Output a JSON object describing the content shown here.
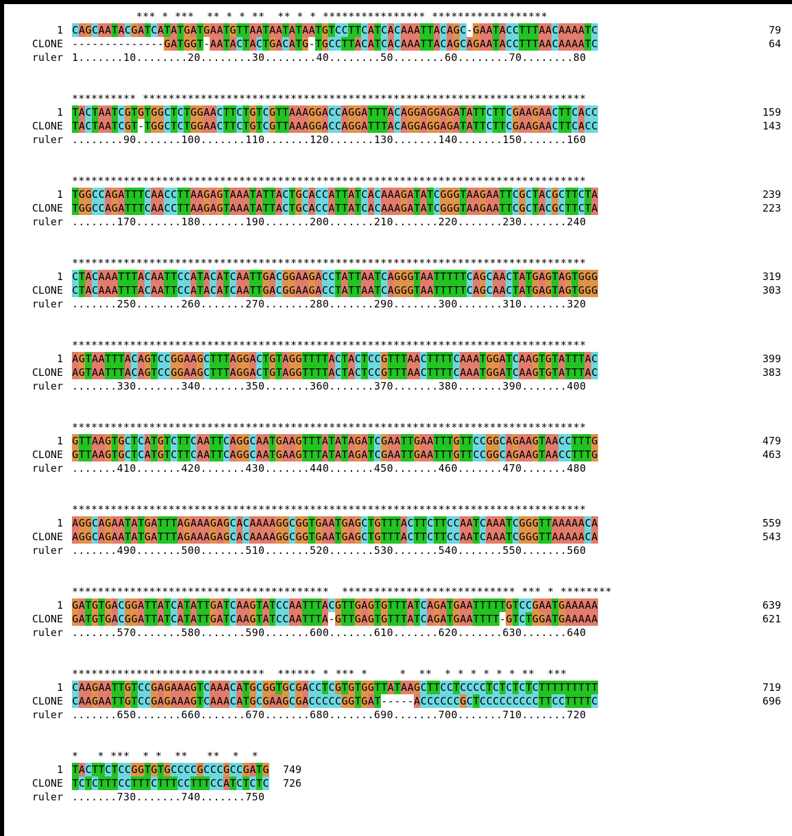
{
  "labels": {
    "seq1": "1",
    "seq2": "CLONE",
    "ruler": "ruler"
  },
  "colors": {
    "A": "#e27c6c",
    "C": "#6dd8e0",
    "G": "#e0934a",
    "T": "#22c322"
  },
  "blocks": [
    {
      "cons": "          *** * ***  ** * * **  ** * * **************** ******************",
      "seq1": "CAGCAATACGATCATATGATGAATGTTAATAATATAATGTCCTTCATCACAAATTACAGC-GAATACCTTTAACAAAATC",
      "seq2": "--------------GATGGT-AATACTACTGACATG-TGCCTTACATCACAAATTACAGCAGAATACCTTTAACAAAATC",
      "ruler": "1.......10........20........30........40........50........60........70........80",
      "end1": "79",
      "end2": "64"
    },
    {
      "cons": "********** *********************************************************************",
      "seq1": "TACTAATCGTGTGGCTCTGGAACTTCTGTCGTTAAAGGACCAGGATTTACAGGAGGAGATATTCTTCGAAGAACTTCACC",
      "seq2": "TACTAATCGT-TGGCTCTGGAACTTCTGTCGTTAAAGGACCAGGATTTACAGGAGGAGATATTCTTCGAAGAACTTCACC",
      "ruler": "........90.......100.......110.......120.......130.......140.......150.......160",
      "end1": "159",
      "end2": "143"
    },
    {
      "cons": "********************************************************************************",
      "seq1": "TGGCCAGATTTCAACCTTAAGAGTAAATATTACTGCACCATTATCACAAAGATATCGGGTAAGAATTCGCTACGCTTCTA",
      "seq2": "TGGCCAGATTTCAACCTTAAGAGTAAATATTACTGCACCATTATCACAAAGATATCGGGTAAGAATTCGCTACGCTTCTA",
      "ruler": ".......170.......180.......190.......200.......210.......220.......230.......240",
      "end1": "239",
      "end2": "223"
    },
    {
      "cons": "********************************************************************************",
      "seq1": "CTACAAATTTACAATTCCATACATCAATTGACGGAAGACCTATTAATCAGGGTAATTTTTCAGCAACTATGAGTAGTGGG",
      "seq2": "CTACAAATTTACAATTCCATACATCAATTGACGGAAGACCTATTAATCAGGGTAATTTTTCAGCAACTATGAGTAGTGGG",
      "ruler": ".......250.......260.......270.......280.......290.......300.......310.......320",
      "end1": "319",
      "end2": "303"
    },
    {
      "cons": "********************************************************************************",
      "seq1": "AGTAATTTACAGTCCGGAAGCTTTAGGACTGTAGGTTTTACTACTCCGTTTAACTTTTCAAATGGATCAAGTGTATTTAC",
      "seq2": "AGTAATTTACAGTCCGGAAGCTTTAGGACTGTAGGTTTTACTACTCCGTTTAACTTTTCAAATGGATCAAGTGTATTTAC",
      "ruler": ".......330.......340.......350.......360.......370.......380.......390.......400",
      "end1": "399",
      "end2": "383"
    },
    {
      "cons": "********************************************************************************",
      "seq1": "GTTAAGTGCTCATGTCTTCAATTCAGGCAATGAAGTTTATATAGATCGAATTGAATTTGTTCCGGCAGAAGTAACCTTTG",
      "seq2": "GTTAAGTGCTCATGTCTTCAATTCAGGCAATGAAGTTTATATAGATCGAATTGAATTTGTTCCGGCAGAAGTAACCTTTG",
      "ruler": ".......410.......420.......430.......440.......450.......460.......470.......480",
      "end1": "479",
      "end2": "463"
    },
    {
      "cons": "********************************************************************************",
      "seq1": "AGGCAGAATATGATTTAGAAAGAGCACAAAAGGCGGTGAATGAGCTGTTTACTTCTTCCAATCAAATCGGGTTAAAAACA",
      "seq2": "AGGCAGAATATGATTTAGAAAGAGCACAAAAGGCGGTGAATGAGCTGTTTACTTCTTCCAATCAAATCGGGTTAAAAACA",
      "ruler": ".......490.......500.......510.......520.......530.......540.......550.......560",
      "end1": "559",
      "end2": "543"
    },
    {
      "cons": "****************************************  *************************** *** * ********",
      "seq1": "GATGTGACGGATTATCATATTGATCAAGTATCCAATTTACGTTGAGTGTTTATCAGATGAATTTTTGTCCGAATGAAAAA",
      "seq2": "GATGTGACGGATTATCATATTGATCAAGTATCCAATTTA-GTTGAGTGTTTATCAGATGAATTTT-GTCTGGATGAAAAA",
      "ruler": ".......570.......580.......590.......600.......610.......620.......630.......640",
      "end1": "639",
      "end2": "621"
    },
    {
      "cons": "******************************  ****** * *** *     *  **  * * * * * * **  ***",
      "seq1": "CAAGAATTGTCCGAGAAAGTCAAACATGCGGTGCGACCTCGTGTGGTTATAAGCTTCCTCCCCTCTCTCTCTTTTTTTTT",
      "seq2": "CAAGAATTGTCCGAGAAAGTCAAACATGCGAAGCGACCCCCGGTGAT-----ACCCCCCGCTCCCCCCCCCTTCCTTTTC",
      "ruler": ".......650.......660.......670.......680.......690.......700.......710.......720",
      "end1": "719",
      "end2": "696"
    },
    {
      "cons": "*   * ***  * *  **   **  *  *",
      "seq1": "TACTTCTCCGGTGTGCCCCGCCCGCCGATG",
      "seq2": "TCTCTTTCCTTTCTTTCCTTTCCATCTCTC",
      "ruler": ".......730.......740.......750",
      "end1": "749",
      "end2": "726"
    }
  ]
}
